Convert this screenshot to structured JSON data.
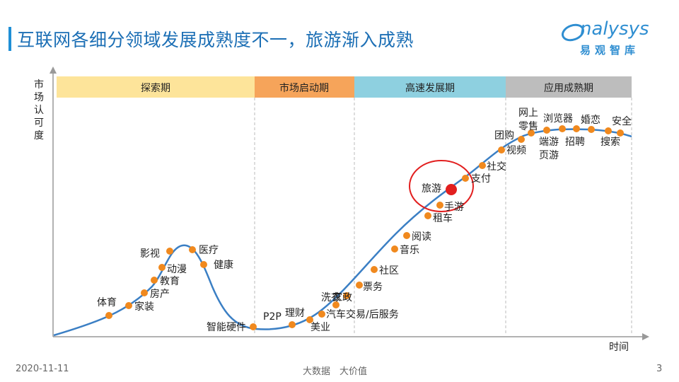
{
  "title": "互联网各细分领域发展成熟度不一，旅游渐入成熟",
  "logo": {
    "english": "nalysys",
    "chinese": "易观智库"
  },
  "footer": {
    "date": "2020-11-11",
    "slogan": "大数据　大价值",
    "page": "3"
  },
  "axes": {
    "y_label": "市场认可度",
    "x_label": "时间"
  },
  "phases": [
    {
      "label": "探索期",
      "color": "#fde49a"
    },
    {
      "label": "市场启动期",
      "color": "#f6a45a"
    },
    {
      "label": "高速发展期",
      "color": "#8ed0e0"
    },
    {
      "label": "应用成熟期",
      "color": "#bdbdbd"
    }
  ],
  "highlight": {
    "label": "旅游",
    "ring_color": "#e21f1f",
    "dot_color": "#e21f1f"
  },
  "colors": {
    "curve": "#3b7fc4",
    "dot": "#f0891e",
    "divider": "#bbbbbb"
  },
  "points": [
    {
      "label": "体育"
    },
    {
      "label": "家装"
    },
    {
      "label": "房产"
    },
    {
      "label": "教育"
    },
    {
      "label": "动漫"
    },
    {
      "label": "影视"
    },
    {
      "label": "医疗"
    },
    {
      "label": "健康"
    },
    {
      "label": "智能硬件"
    },
    {
      "label": "P2P"
    },
    {
      "label": "理财"
    },
    {
      "label": "美业"
    },
    {
      "label": "汽车交易/后服务"
    },
    {
      "label": "洗衣"
    },
    {
      "label": "家政"
    },
    {
      "label": "票务"
    },
    {
      "label": "社区"
    },
    {
      "label": "音乐"
    },
    {
      "label": "阅读"
    },
    {
      "label": "租车"
    },
    {
      "label": "手游"
    },
    {
      "label": "支付"
    },
    {
      "label": "社交"
    },
    {
      "label": "视频"
    },
    {
      "label": "团购"
    },
    {
      "label": "网上"
    },
    {
      "label": "零售"
    },
    {
      "label": "端游"
    },
    {
      "label": "页游"
    },
    {
      "label": "浏览器"
    },
    {
      "label": "招聘"
    },
    {
      "label": "婚恋"
    },
    {
      "label": "搜索"
    },
    {
      "label": "安全"
    }
  ]
}
